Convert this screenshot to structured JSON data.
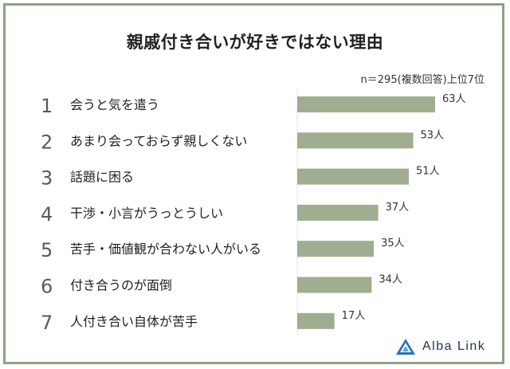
{
  "title": "親戚付き合いが好きではない理由",
  "note": "n＝295(複数回答)上位7位",
  "brand": "Alba Link",
  "colors": {
    "bar": "#a0ad90",
    "border": "#8fa283",
    "rank": "#5a5a5a",
    "logo": "#1f3552"
  },
  "chart_data": {
    "type": "bar",
    "orientation": "horizontal",
    "title": "親戚付き合いが好きではない理由",
    "ranks": [
      "1",
      "2",
      "3",
      "4",
      "5",
      "6",
      "7"
    ],
    "categories": [
      "会うと気を遣う",
      "あまり会っておらず親しくない",
      "話題に困る",
      "干渉・小言がうっとうしい",
      "苦手・価値観が合わない人がいる",
      "付き合うのが面倒",
      "人付き合い自体が苦手"
    ],
    "values": [
      63,
      53,
      51,
      37,
      35,
      34,
      17
    ],
    "value_labels": [
      "63人",
      "53人",
      "51人",
      "37人",
      "35人",
      "34人",
      "17人"
    ],
    "xlim": [
      0,
      63
    ],
    "grid": false
  }
}
